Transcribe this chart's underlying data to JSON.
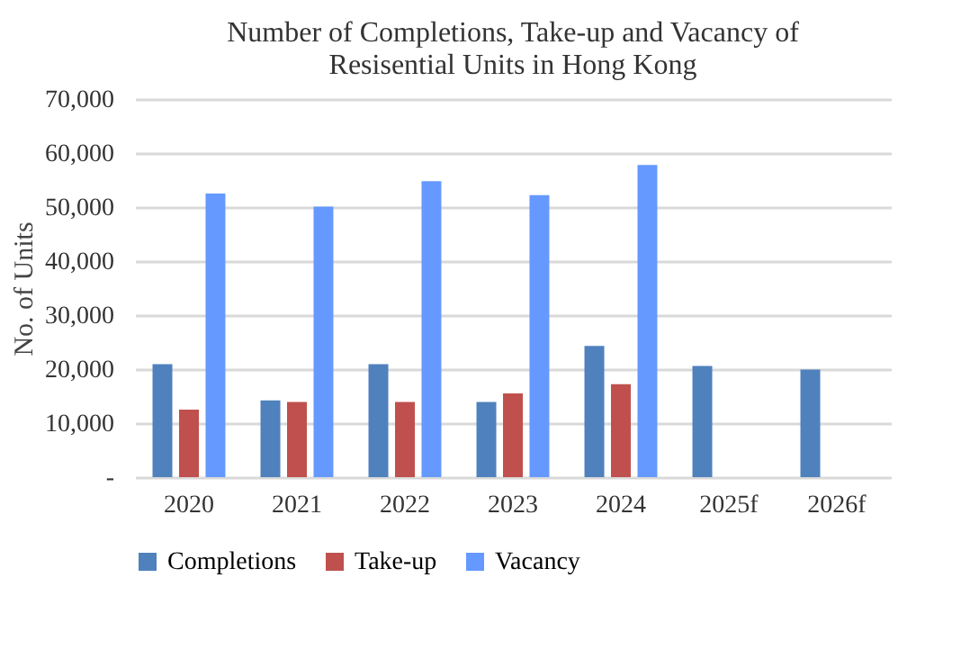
{
  "chart_data": {
    "type": "bar",
    "title": "Number of Completions, Take-up and Vacancy of Resisential Units in Hong Kong",
    "ylabel": "No. of Units",
    "categories": [
      "2020",
      "2021",
      "2022",
      "2023",
      "2024",
      "2025f",
      "2026f"
    ],
    "series": [
      {
        "name": "Completions",
        "color": "#4f81bd",
        "values": [
          20900,
          14200,
          20900,
          13900,
          24300,
          20600,
          19900
        ]
      },
      {
        "name": "Take-up",
        "color": "#c0504d",
        "values": [
          12500,
          13900,
          13900,
          15500,
          17200,
          null,
          null
        ]
      },
      {
        "name": "Vacancy",
        "color": "#6699ff",
        "values": [
          52500,
          50100,
          54800,
          52200,
          57800,
          null,
          null
        ]
      }
    ],
    "ylim": [
      0,
      70000
    ],
    "yticks": [
      {
        "value": 0,
        "label": "-"
      },
      {
        "value": 10000,
        "label": "10,000"
      },
      {
        "value": 20000,
        "label": "20,000"
      },
      {
        "value": 30000,
        "label": "30,000"
      },
      {
        "value": 40000,
        "label": "40,000"
      },
      {
        "value": 50000,
        "label": "50,000"
      },
      {
        "value": 60000,
        "label": "60,000"
      },
      {
        "value": 70000,
        "label": "70,000"
      }
    ],
    "grid": "y",
    "legend": "bottom"
  }
}
